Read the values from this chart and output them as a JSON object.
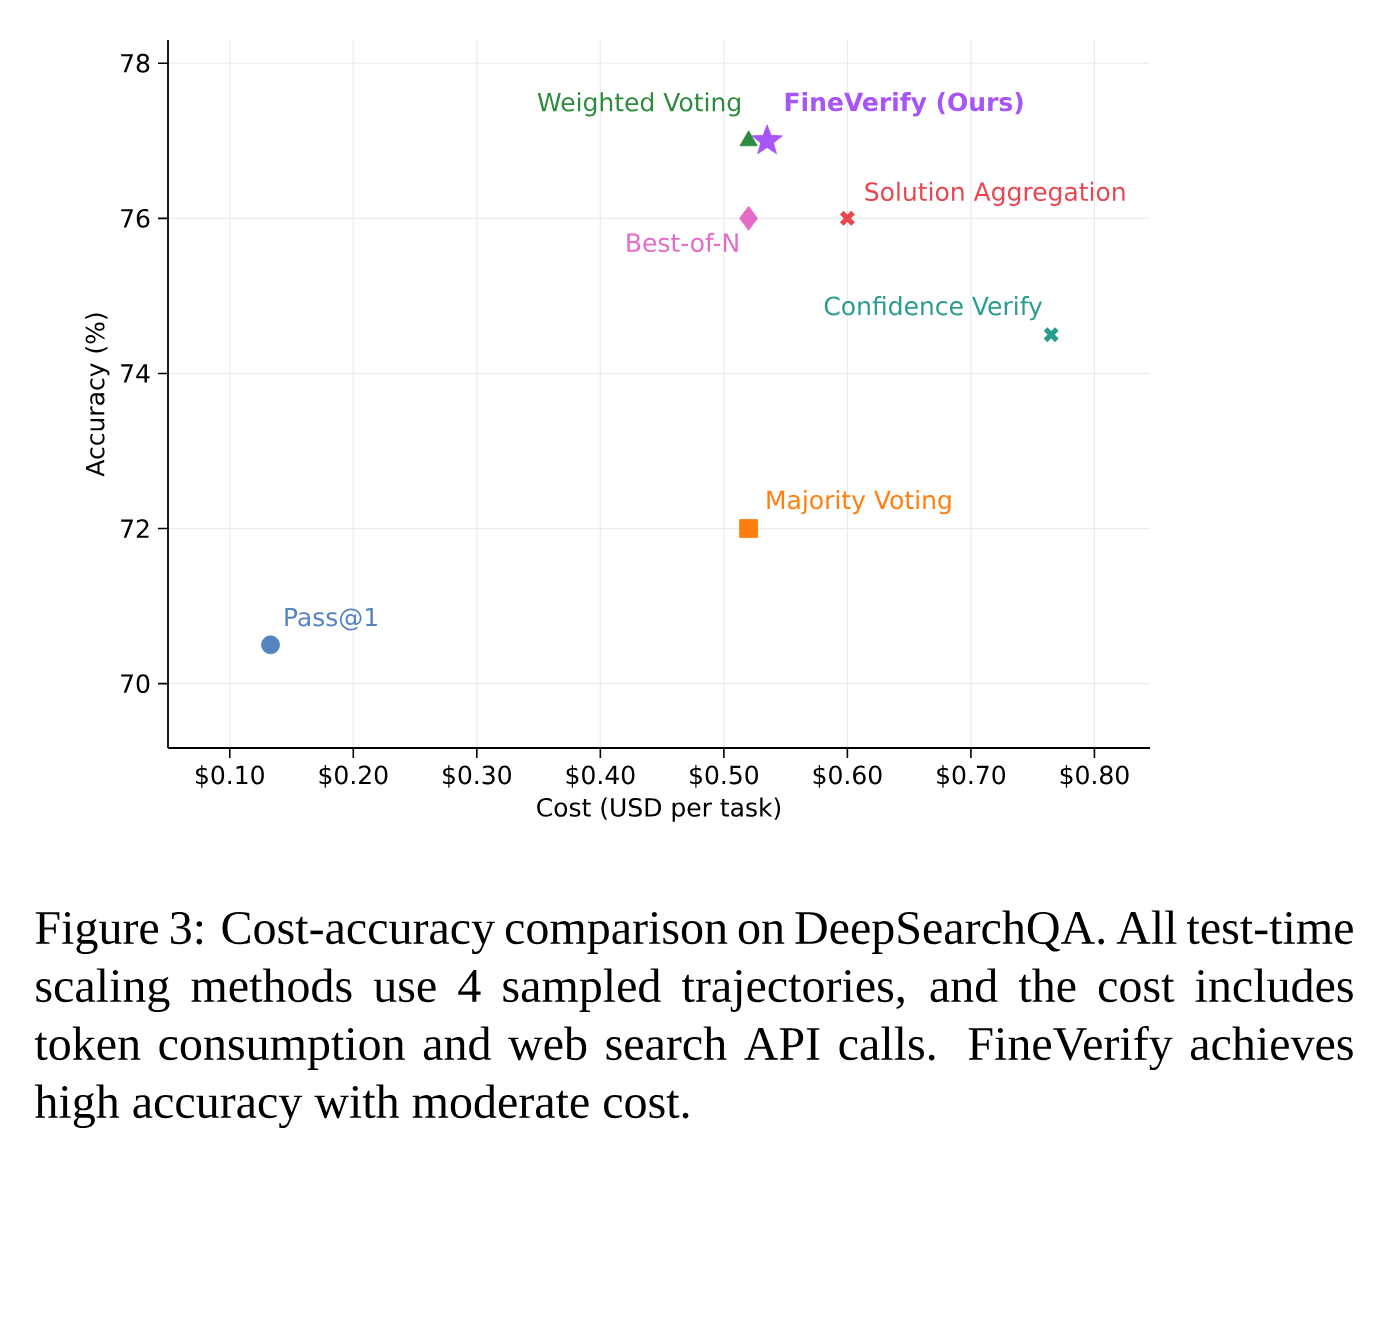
{
  "chart_data": {
    "type": "scatter",
    "xlabel": "Cost (USD per task)",
    "ylabel": "Accuracy (%)",
    "xlim": [
      0.05,
      0.845
    ],
    "ylim": [
      69.17,
      78.3
    ],
    "xticks": [
      {
        "value": 0.1,
        "label": "$0.10"
      },
      {
        "value": 0.2,
        "label": "$0.20"
      },
      {
        "value": 0.3,
        "label": "$0.30"
      },
      {
        "value": 0.4,
        "label": "$0.40"
      },
      {
        "value": 0.5,
        "label": "$0.50"
      },
      {
        "value": 0.6,
        "label": "$0.60"
      },
      {
        "value": 0.7,
        "label": "$0.70"
      },
      {
        "value": 0.8,
        "label": "$0.80"
      }
    ],
    "yticks": [
      70,
      72,
      74,
      76,
      78
    ],
    "grid": true,
    "series": [
      {
        "name": "Pass@1",
        "color": "#5684c0",
        "marker": "circle",
        "x": [
          0.133
        ],
        "values": [
          70.5
        ]
      },
      {
        "name": "Majority Voting",
        "color": "#ff7f0e",
        "marker": "square",
        "x": [
          0.52
        ],
        "values": [
          72
        ]
      },
      {
        "name": "Weighted Voting",
        "color": "#2e8b3e",
        "marker": "triangle",
        "x": [
          0.52
        ],
        "values": [
          77
        ]
      },
      {
        "name": "FineVerify (Ours)",
        "color": "#a855f7",
        "marker": "star",
        "x": [
          0.535
        ],
        "values": [
          77
        ]
      },
      {
        "name": "Best-of-N",
        "color": "#e56cc6",
        "marker": "diamond",
        "x": [
          0.52
        ],
        "values": [
          76
        ]
      },
      {
        "name": "Solution Aggregation",
        "color": "#e8474f",
        "marker": "cross",
        "x": [
          0.6
        ],
        "values": [
          76
        ]
      },
      {
        "name": "Confidence Verify",
        "color": "#2a9d8f",
        "marker": "cross",
        "x": [
          0.765
        ],
        "values": [
          74.5
        ]
      }
    ],
    "annotations": [
      "Figure 3: Cost-accuracy comparison on DeepSearchQA. All test-time scaling methods use 4 sampled trajectories, and the cost includes token consumption and web search API calls. FineVerify achieves high accuracy with moderate cost."
    ]
  }
}
